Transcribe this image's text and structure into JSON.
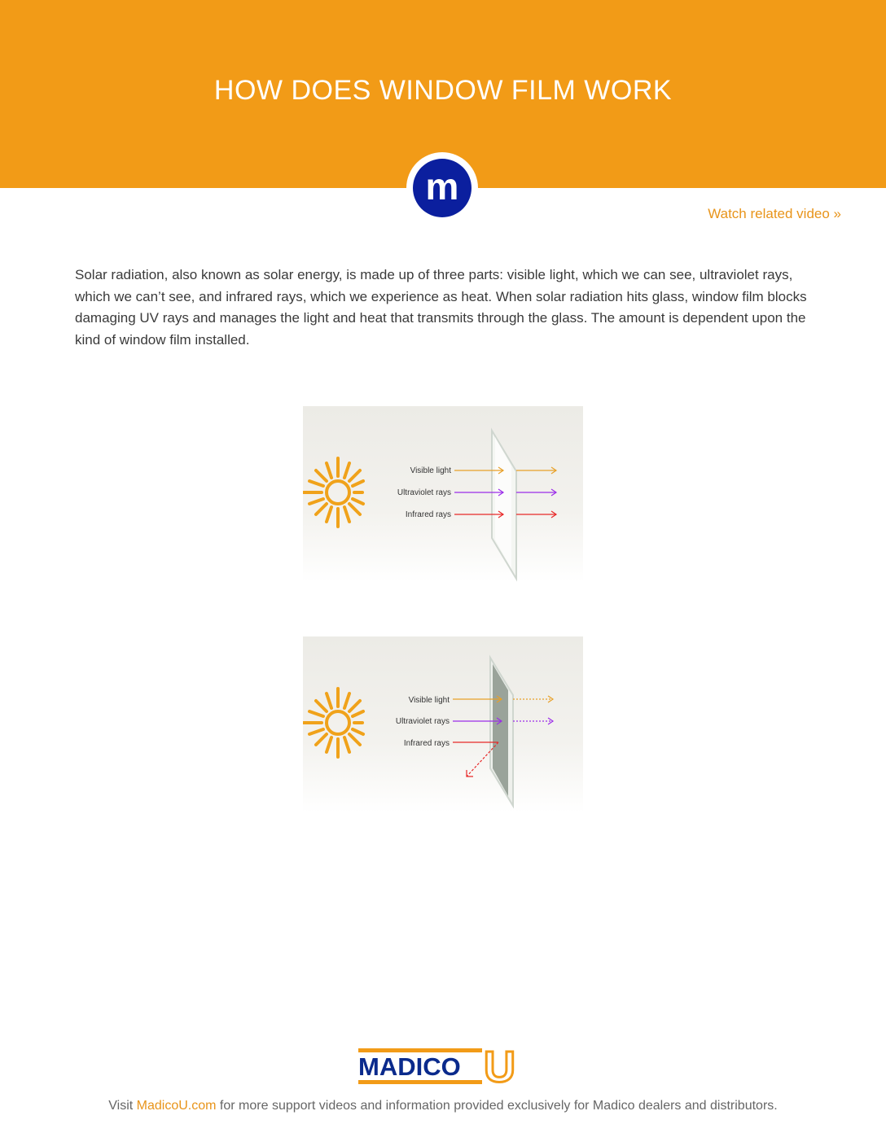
{
  "header": {
    "title": "HOW DOES WINDOW FILM WORK",
    "logo_letter": "m"
  },
  "video_link": {
    "label": "Watch related video »"
  },
  "intro": {
    "text": "Solar radiation, also known as solar energy, is made up of three parts: visible light, which we can see, ultraviolet rays, which we can’t see, and infrared rays, which we experience as heat. When solar radiation hits glass, window film blocks damaging UV rays and manages the light and heat that transmits through the glass. The amount is dependent upon the kind of window film installed."
  },
  "figures": [
    {
      "labels": [
        "Visible light",
        "Ultraviolet rays",
        "Infrared rays"
      ],
      "colors": {
        "visible": "#e8a028",
        "uv": "#9b2ee8",
        "ir": "#e82828",
        "sun": "#f0a21a"
      }
    },
    {
      "labels": [
        "Visible light",
        "Ultraviolet rays",
        "Infrared rays"
      ],
      "colors": {
        "visible": "#e8a028",
        "uv": "#9b2ee8",
        "ir": "#e82828",
        "sun": "#f0a21a"
      }
    }
  ],
  "footer": {
    "logo_text": "MADICO",
    "logo_letter": "U",
    "prefix": "Visit ",
    "link_label": "MadicoU.com",
    "suffix": " for more support videos and information provided exclusively for Madico dealers and distributors.",
    "brand_blue": "#0a2a8c",
    "brand_orange": "#f29b17"
  }
}
